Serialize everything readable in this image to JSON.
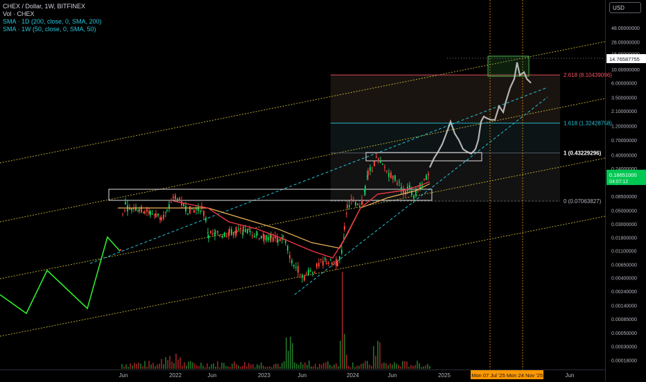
{
  "legend": {
    "symbol": "CHEX / Dollar, 1W, BITFINEX",
    "vol": "Vol · CHEX",
    "sma1": "SMA · 1D (200, close, 0, SMA, 200)",
    "sma2": "SMA · 1W (50, close, 0, SMA, 50)"
  },
  "currency_button": "USD",
  "colors": {
    "sma_fast": "#f23645",
    "sma_slow": "#f0b458",
    "fib": "#5d606b",
    "fib_top": "#f7525f",
    "fib_mid": "#26c6da",
    "channel": "#d6c33a",
    "trendline": "#26c6da",
    "projection": "#2dea2d",
    "price_badge": "#00c853",
    "date_badge": "#ff9800"
  },
  "chart_data": {
    "type": "candlestick",
    "y_scale": "log",
    "y_ticks": [
      "48.00000000",
      "28.00000000",
      "18.00000000",
      "10.00000000",
      "6.00000000",
      "3.50000000",
      "2.10000000",
      "1.20000000",
      "0.70000000",
      "0.40000000",
      "0.24000000",
      "0.14000000",
      "0.08500000",
      "0.05000000",
      "0.03000000",
      "0.01800000",
      "0.01100000",
      "0.00650000",
      "0.00400000",
      "0.00240000",
      "0.00140000",
      "0.00085000",
      "0.00050000",
      "0.00030000",
      "0.00018000"
    ],
    "x_ticks": [
      "Jun",
      "2022",
      "Jun",
      "2023",
      "Jun",
      "2024",
      "Jun",
      "2025",
      "Jun"
    ],
    "fib_levels": [
      {
        "label": "2.618 (8.10439096)",
        "value": 8.10439096
      },
      {
        "label": "1.618 (1.32428758)",
        "value": 1.32428758
      },
      {
        "label": "1 (0.43229296)",
        "value": 0.43229296
      },
      {
        "label": "0 (0.07063827)",
        "value": 0.07063827
      }
    ],
    "price_labels": [
      {
        "text": "14.76587755",
        "value": 14.76587755
      },
      {
        "text": "0.18651000",
        "value": 0.18651,
        "sub": "04:07:12"
      }
    ],
    "date_labels": [
      "Mon 07 Jul '25",
      "Mon 24 Nov '25"
    ],
    "series": [
      {
        "name": "CHEX",
        "kind": "candles"
      },
      {
        "name": "SMA · 1D (200, close, 0, SMA, 200)",
        "kind": "line"
      },
      {
        "name": "SMA · 1W (50, close, 0, SMA, 50)",
        "kind": "line"
      },
      {
        "name": "Vol · CHEX",
        "kind": "bars"
      }
    ],
    "price_path": [
      [
        173,
        0.011
      ],
      [
        176,
        0.045
      ],
      [
        180,
        0.06
      ],
      [
        186,
        0.05
      ],
      [
        192,
        0.055
      ],
      [
        200,
        0.052
      ],
      [
        208,
        0.05
      ],
      [
        216,
        0.045
      ],
      [
        224,
        0.042
      ],
      [
        232,
        0.04
      ],
      [
        240,
        0.045
      ],
      [
        246,
        0.07
      ],
      [
        252,
        0.085
      ],
      [
        258,
        0.07
      ],
      [
        264,
        0.06
      ],
      [
        270,
        0.05
      ],
      [
        276,
        0.052
      ],
      [
        282,
        0.05
      ],
      [
        290,
        0.055
      ],
      [
        296,
        0.035
      ],
      [
        300,
        0.02
      ],
      [
        310,
        0.02
      ],
      [
        320,
        0.02
      ],
      [
        330,
        0.022
      ],
      [
        340,
        0.022
      ],
      [
        350,
        0.024
      ],
      [
        360,
        0.022
      ],
      [
        370,
        0.02
      ],
      [
        380,
        0.018
      ],
      [
        390,
        0.018
      ],
      [
        400,
        0.016
      ],
      [
        408,
        0.018
      ],
      [
        414,
        0.012
      ],
      [
        420,
        0.007
      ],
      [
        426,
        0.006
      ],
      [
        432,
        0.005
      ],
      [
        438,
        0.004
      ],
      [
        444,
        0.005
      ],
      [
        450,
        0.005
      ],
      [
        456,
        0.006
      ],
      [
        462,
        0.007
      ],
      [
        470,
        0.0075
      ],
      [
        478,
        0.007
      ],
      [
        486,
        0.007
      ],
      [
        492,
        0.01
      ],
      [
        496,
        0.025
      ],
      [
        500,
        0.06
      ],
      [
        506,
        0.07
      ],
      [
        512,
        0.06
      ],
      [
        518,
        0.055
      ],
      [
        522,
        0.07
      ],
      [
        526,
        0.12
      ],
      [
        530,
        0.2
      ],
      [
        536,
        0.25
      ],
      [
        542,
        0.35
      ],
      [
        548,
        0.28
      ],
      [
        554,
        0.25
      ],
      [
        560,
        0.2
      ],
      [
        566,
        0.18
      ],
      [
        572,
        0.15
      ],
      [
        578,
        0.12
      ],
      [
        584,
        0.1
      ],
      [
        590,
        0.12
      ],
      [
        596,
        0.08
      ],
      [
        602,
        0.11
      ],
      [
        608,
        0.14
      ],
      [
        614,
        0.17
      ],
      [
        620,
        0.25
      ],
      [
        626,
        0.35
      ],
      [
        632,
        0.45
      ],
      [
        638,
        0.6
      ],
      [
        644,
        0.9
      ],
      [
        650,
        1.4
      ],
      [
        656,
        0.9
      ],
      [
        662,
        0.7
      ],
      [
        668,
        0.5
      ],
      [
        674,
        0.45
      ],
      [
        680,
        0.42
      ],
      [
        686,
        0.5
      ],
      [
        690,
        0.7
      ],
      [
        694,
        1.4
      ],
      [
        698,
        1.7
      ],
      [
        702,
        1.6
      ],
      [
        708,
        1.5
      ],
      [
        714,
        1.5
      ],
      [
        720,
        2.5
      ],
      [
        726,
        2.0
      ],
      [
        730,
        3.0
      ],
      [
        736,
        5.0
      ],
      [
        742,
        7.0
      ],
      [
        746,
        13.0
      ],
      [
        750,
        8.0
      ],
      [
        756,
        9.0
      ],
      [
        760,
        7.0
      ],
      [
        766,
        6.0
      ]
    ]
  }
}
